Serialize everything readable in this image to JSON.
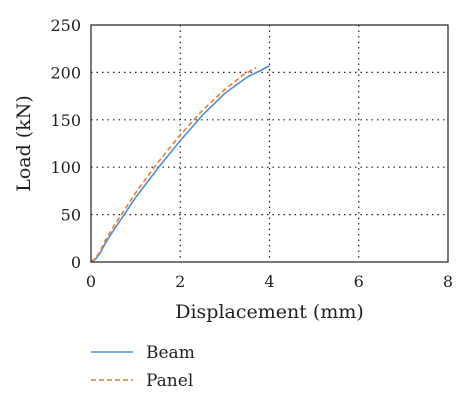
{
  "chart_data": {
    "type": "line",
    "xlabel": "Displacement (mm)",
    "ylabel": "Load (kN)",
    "xlim": [
      0,
      8
    ],
    "ylim": [
      0,
      250
    ],
    "xticks": [
      "0",
      "2",
      "4",
      "6",
      "8"
    ],
    "yticks": [
      "0",
      "50",
      "100",
      "150",
      "200",
      "250"
    ],
    "grid": true,
    "legend_position": "bottom-left",
    "series": [
      {
        "name": "Beam",
        "color": "#4a90d9",
        "style": "solid",
        "points": [
          [
            0,
            0
          ],
          [
            0.1,
            3
          ],
          [
            0.2,
            9
          ],
          [
            0.3,
            18
          ],
          [
            0.5,
            33
          ],
          [
            1.0,
            68
          ],
          [
            1.5,
            99
          ],
          [
            2.0,
            128
          ],
          [
            2.5,
            155
          ],
          [
            3.0,
            178
          ],
          [
            3.5,
            195
          ],
          [
            3.8,
            202
          ],
          [
            4.0,
            207
          ]
        ]
      },
      {
        "name": "Panel",
        "color": "#f07a28",
        "style": "dashed",
        "points": [
          [
            0,
            0
          ],
          [
            0.1,
            4
          ],
          [
            0.2,
            11
          ],
          [
            0.3,
            21
          ],
          [
            0.5,
            37
          ],
          [
            1.0,
            73
          ],
          [
            1.5,
            105
          ],
          [
            2.0,
            134
          ],
          [
            2.5,
            160
          ],
          [
            3.0,
            182
          ],
          [
            3.4,
            197
          ],
          [
            3.7,
            205
          ]
        ]
      }
    ]
  }
}
